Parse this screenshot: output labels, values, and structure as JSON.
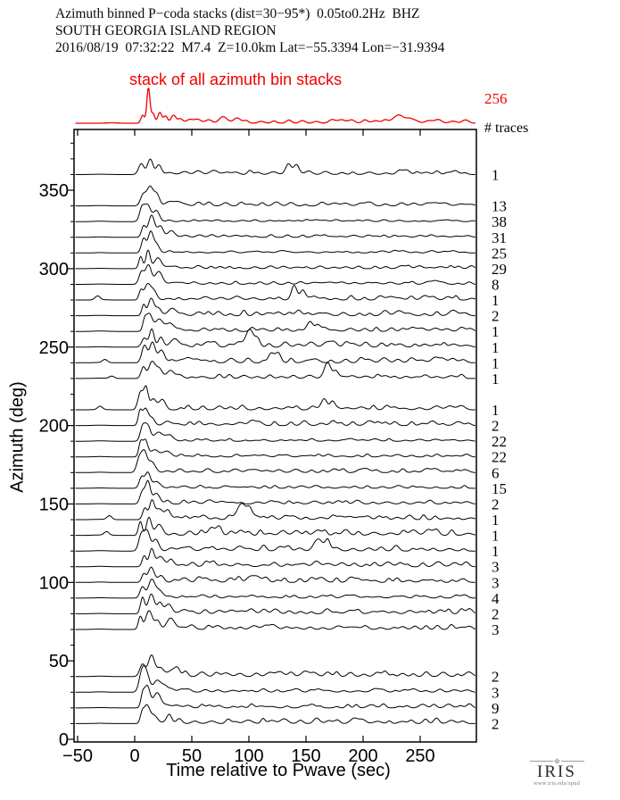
{
  "labels": {
    "traces_header": "# traces"
  },
  "logo": {
    "text": "IRIS",
    "caption": "www.iris.edu/spud"
  },
  "colors": {
    "stack": "#f20000",
    "trace": "#000000",
    "frame": "#000000"
  },
  "chart_data": {
    "type": "line",
    "title_lines": [
      "Azimuth binned P−coda stacks (dist=30−95*)  0.05to0.2Hz  BHZ",
      "SOUTH GEORGIA ISLAND REGION",
      "2016/08/19  07:32:22  M7.4  Z=10.0km Lat=−55.3394 Lon=−31.9394"
    ],
    "xlabel": "Time relative to Pwave (sec)",
    "ylabel": "Azimuth (deg)",
    "xlim": [
      -51.6,
      298.8
    ],
    "ylim": [
      -2,
      389
    ],
    "x_ticks": [
      -50,
      0,
      50,
      100,
      150,
      200,
      250
    ],
    "y_ticks": [
      0,
      50,
      100,
      150,
      200,
      250,
      300,
      350
    ],
    "y_minor_tick_step": 10,
    "azimuth_bin_width_deg": 10,
    "grid": false,
    "legend": "none",
    "stack_trace": {
      "label": "stack of all azimuth bin stacks",
      "total_traces": 256,
      "color": "#f20000"
    },
    "traces": [
      {
        "azimuth": 360,
        "num_traces": 1
      },
      {
        "azimuth": 340,
        "num_traces": 13
      },
      {
        "azimuth": 330,
        "num_traces": 38
      },
      {
        "azimuth": 320,
        "num_traces": 31
      },
      {
        "azimuth": 310,
        "num_traces": 25
      },
      {
        "azimuth": 300,
        "num_traces": 29
      },
      {
        "azimuth": 290,
        "num_traces": 8
      },
      {
        "azimuth": 280,
        "num_traces": 1
      },
      {
        "azimuth": 270,
        "num_traces": 2
      },
      {
        "azimuth": 260,
        "num_traces": 1
      },
      {
        "azimuth": 250,
        "num_traces": 1
      },
      {
        "azimuth": 240,
        "num_traces": 1
      },
      {
        "azimuth": 230,
        "num_traces": 1
      },
      {
        "azimuth": 210,
        "num_traces": 1
      },
      {
        "azimuth": 200,
        "num_traces": 2
      },
      {
        "azimuth": 190,
        "num_traces": 22
      },
      {
        "azimuth": 180,
        "num_traces": 22
      },
      {
        "azimuth": 170,
        "num_traces": 6
      },
      {
        "azimuth": 160,
        "num_traces": 15
      },
      {
        "azimuth": 150,
        "num_traces": 2
      },
      {
        "azimuth": 140,
        "num_traces": 1
      },
      {
        "azimuth": 130,
        "num_traces": 1
      },
      {
        "azimuth": 120,
        "num_traces": 1
      },
      {
        "azimuth": 110,
        "num_traces": 3
      },
      {
        "azimuth": 100,
        "num_traces": 3
      },
      {
        "azimuth": 90,
        "num_traces": 4
      },
      {
        "azimuth": 80,
        "num_traces": 2
      },
      {
        "azimuth": 70,
        "num_traces": 3
      },
      {
        "azimuth": 40,
        "num_traces": 2
      },
      {
        "azimuth": 30,
        "num_traces": 3
      },
      {
        "azimuth": 20,
        "num_traces": 9
      },
      {
        "azimuth": 10,
        "num_traces": 2
      }
    ]
  }
}
